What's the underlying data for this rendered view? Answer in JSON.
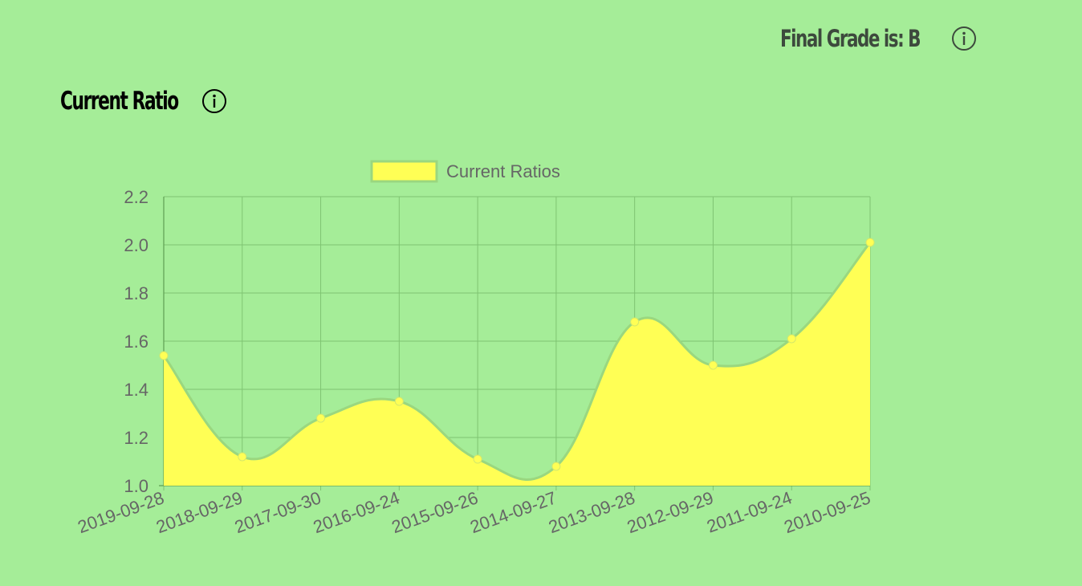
{
  "header": {
    "grade_label": "Final Grade is: B",
    "info_icon": "info-circle-icon"
  },
  "section": {
    "title": "Current Ratio",
    "info_icon": "info-circle-icon"
  },
  "colors": {
    "background": "#a5ed98",
    "fill": "#ffff55",
    "line": "#9ad77f",
    "point": "#ffff55",
    "grid": "#7fc472",
    "text": "#666666"
  },
  "chart_data": {
    "type": "area",
    "legend": {
      "label": "Current Ratios",
      "position": "top"
    },
    "categories": [
      "2019-09-28",
      "2018-09-29",
      "2017-09-30",
      "2016-09-24",
      "2015-09-26",
      "2014-09-27",
      "2013-09-28",
      "2012-09-29",
      "2011-09-24",
      "2010-09-25"
    ],
    "series": [
      {
        "name": "Current Ratios",
        "values": [
          1.54,
          1.12,
          1.28,
          1.35,
          1.11,
          1.08,
          1.68,
          1.5,
          1.61,
          2.01
        ]
      }
    ],
    "ylim": [
      1.0,
      2.2
    ],
    "yticks": [
      "1.0",
      "1.2",
      "1.4",
      "1.6",
      "1.8",
      "2.0",
      "2.2"
    ],
    "grid": true
  }
}
